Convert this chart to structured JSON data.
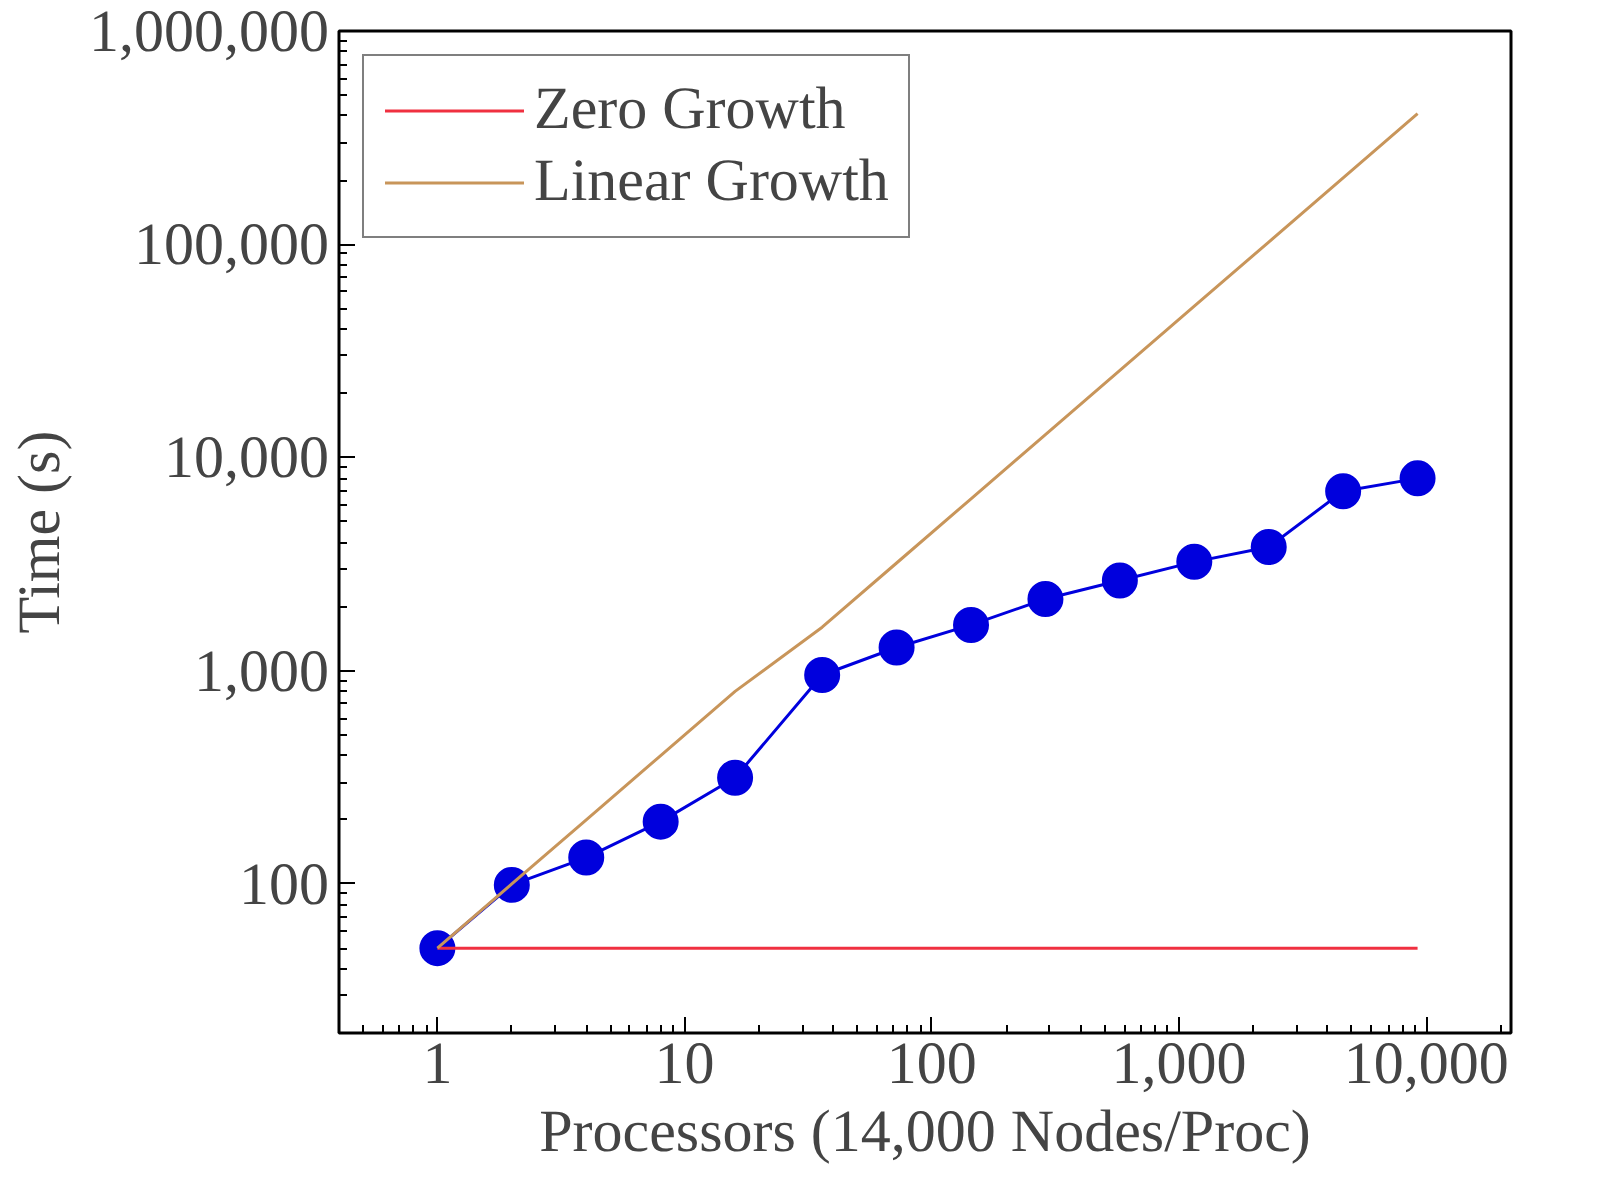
{
  "chart_data": {
    "type": "line",
    "xlabel": "Processors (14,000 Nodes/Proc)",
    "ylabel": "Time (s)",
    "log": "xy",
    "grid": false,
    "legend": "top left",
    "line_style": "solid",
    "xlim": [
      0.4,
      22000
    ],
    "ylim": [
      20,
      1000000
    ],
    "xticks": [
      1,
      10,
      100,
      {
        "value": 1000,
        "label": "1,000"
      },
      {
        "value": 10000,
        "label": "10,000"
      }
    ],
    "yticks": [
      100,
      {
        "value": 1000,
        "label": "1,000"
      },
      {
        "value": 10000,
        "label": "10,000"
      },
      {
        "value": 100000,
        "label": "100,000"
      },
      {
        "value": 1000000,
        "label": "1,000,000"
      }
    ],
    "series": [
      {
        "color": "#0000dd",
        "marker": "circle",
        "x": [
          1,
          2,
          4,
          8,
          16,
          36,
          72,
          144,
          288,
          576,
          1152,
          2304,
          4608,
          9216
        ],
        "values": [
          50,
          99,
          133,
          196,
          315,
          955,
          1285,
          1640,
          2170,
          2650,
          3240,
          3800,
          6950,
          7980
        ]
      },
      {
        "name": "Zero Growth",
        "color": "#f03040",
        "marker": "none",
        "x": [
          1,
          9216
        ],
        "values": [
          50,
          50
        ]
      },
      {
        "name": "Linear Growth",
        "color": "#c8955a",
        "marker": "none",
        "x": [
          1,
          2,
          4,
          8,
          16,
          36,
          72,
          144,
          288,
          576,
          1152,
          2304,
          4608,
          9216
        ],
        "values": [
          50,
          100,
          200,
          400,
          800,
          1600,
          3200,
          6400,
          12800,
          25600,
          51200,
          102400,
          204800,
          409600
        ]
      }
    ]
  }
}
